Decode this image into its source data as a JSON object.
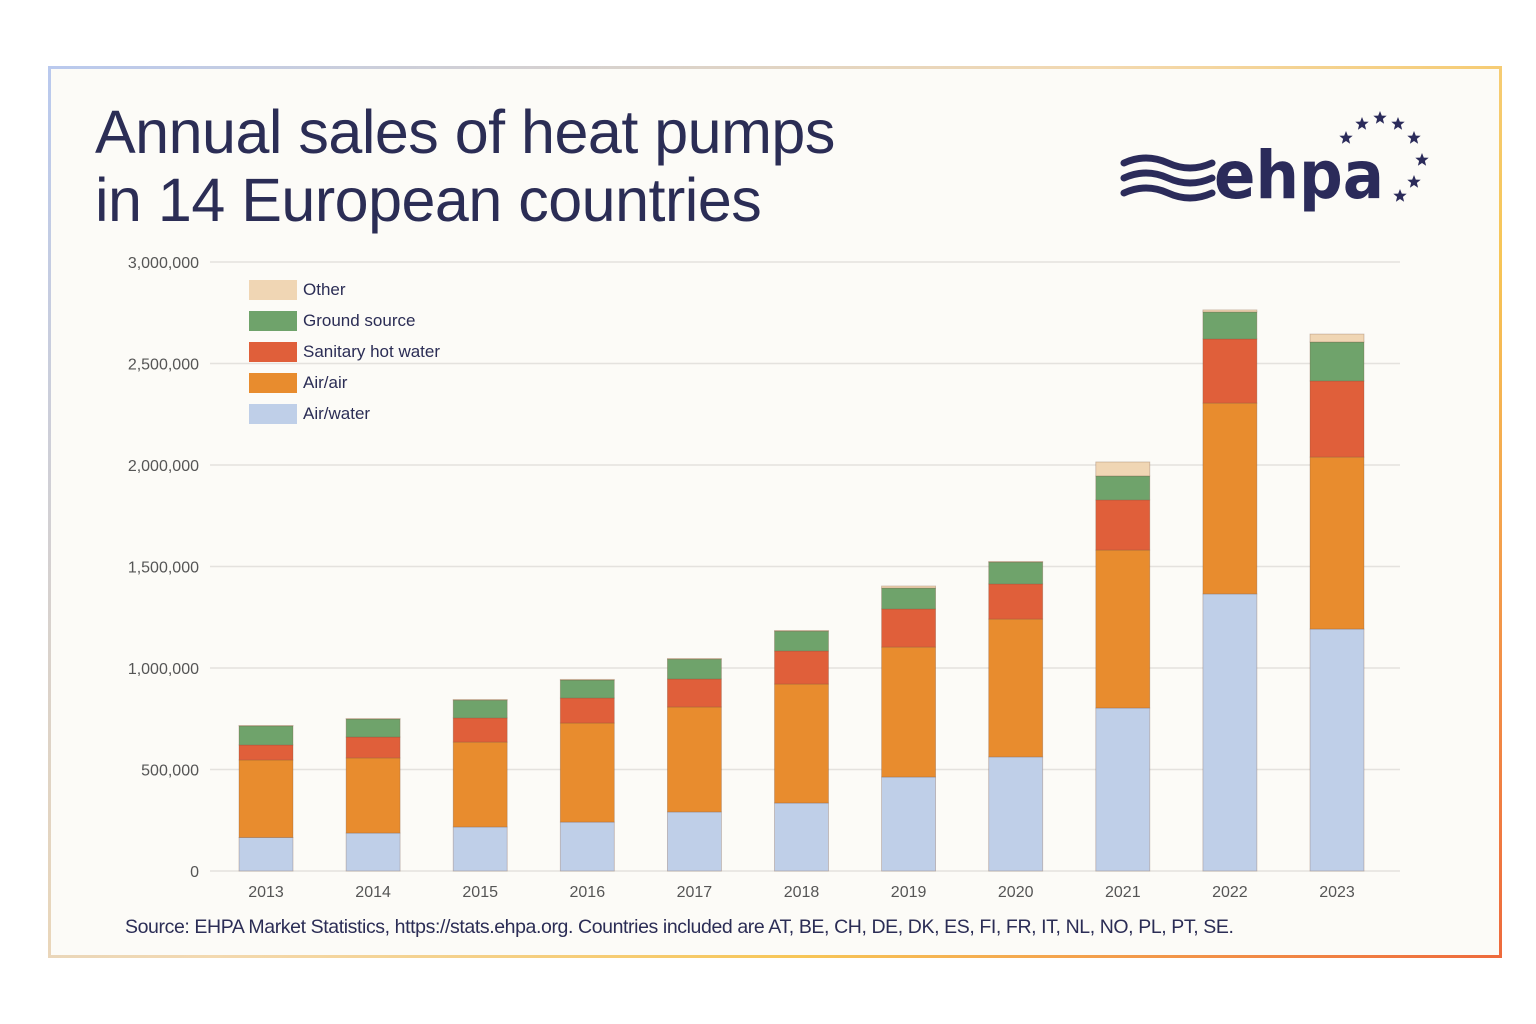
{
  "title_line1": "Annual sales of heat pumps",
  "title_line2": "in 14 European countries",
  "logo_text": "ehpa",
  "source": "Source: EHPA Market Statistics, https://stats.ehpa.org.  Countries included are AT, BE, CH, DE, DK, ES, FI, FR, IT, NL, NO, PL, PT, SE.",
  "chart_data": {
    "type": "bar",
    "stacked": true,
    "categories": [
      "2013",
      "2014",
      "2015",
      "2016",
      "2017",
      "2018",
      "2019",
      "2020",
      "2021",
      "2022",
      "2023"
    ],
    "ylim": [
      0,
      3000000
    ],
    "yticks": [
      0,
      500000,
      1000000,
      1500000,
      2000000,
      2500000,
      3000000
    ],
    "ytick_labels": [
      "0",
      "500,000",
      "1,000,000",
      "1,500,000",
      "2,000,000",
      "2,500,000",
      "3,000,000"
    ],
    "grid": true,
    "legend_placement": "top-left",
    "legend_order": [
      "Other",
      "Ground source",
      "Sanitary hot water",
      "Air/air",
      "Air/water"
    ],
    "series": [
      {
        "name": "Air/water",
        "color": "#bfcfe8",
        "values": [
          165000,
          187000,
          217000,
          241000,
          291000,
          335000,
          463000,
          562000,
          803000,
          1365000,
          1192000
        ]
      },
      {
        "name": "Air/air",
        "color": "#e88c2e",
        "values": [
          382000,
          370000,
          418000,
          488000,
          517000,
          586000,
          640000,
          679000,
          778000,
          940000,
          847000
        ]
      },
      {
        "name": "Sanitary hot water",
        "color": "#e05f3a",
        "values": [
          74000,
          103000,
          119000,
          123000,
          138000,
          163000,
          188000,
          173000,
          247000,
          316000,
          375000
        ]
      },
      {
        "name": "Ground source",
        "color": "#6fa36b",
        "values": [
          94000,
          89000,
          88000,
          89000,
          98000,
          98000,
          103000,
          108000,
          118000,
          133000,
          192000
        ]
      },
      {
        "name": "Other",
        "color": "#f0d6b4",
        "values": [
          2000,
          2000,
          3000,
          3000,
          3000,
          3000,
          10000,
          3000,
          69000,
          10000,
          39000
        ]
      }
    ]
  }
}
